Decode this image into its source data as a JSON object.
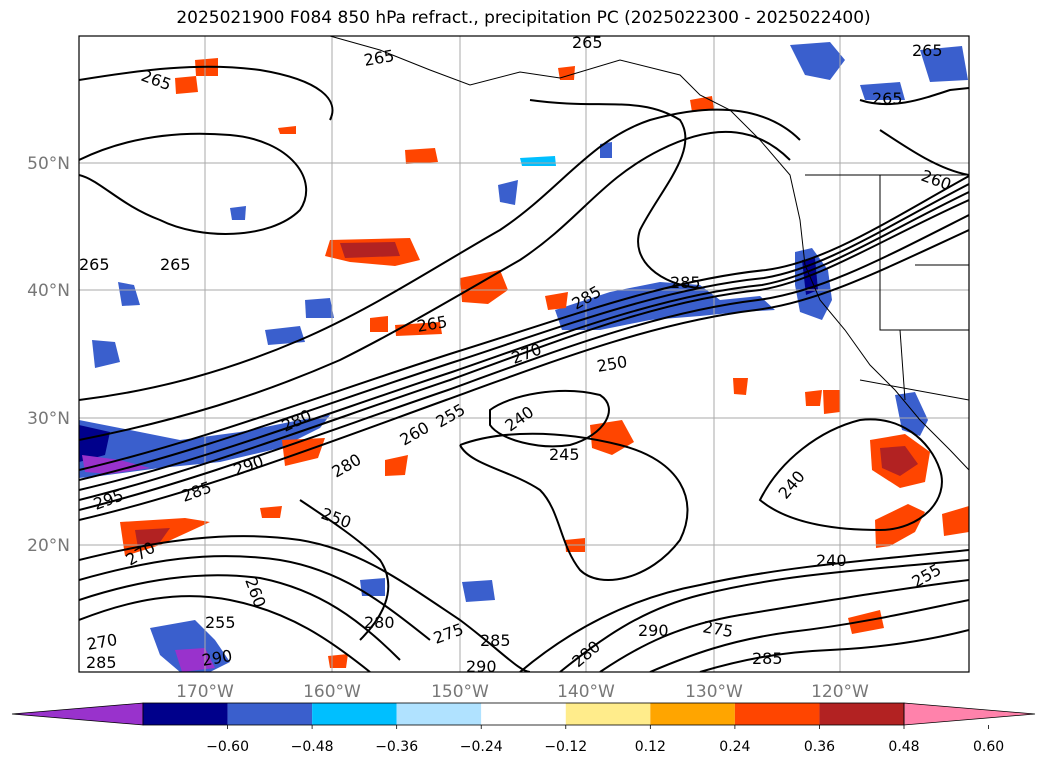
{
  "title": "2025021900 F084 850 hPa refract., precipitation PC (2025022300 - 2025022400)",
  "lat_labels": [
    "50°N",
    "40°N",
    "30°N",
    "20°N"
  ],
  "lon_labels": [
    "170°W",
    "160°W",
    "150°W",
    "140°W",
    "130°W",
    "120°W"
  ],
  "colorbar": {
    "colors": [
      "#9932cc",
      "#00008b",
      "#3a5fcd",
      "#00bfff",
      "#b0e2ff",
      "#ffffff",
      "#ffec8b",
      "#ffa500",
      "#ff4500",
      "#b22222",
      "#ff82ab"
    ],
    "tick_labels": [
      "−0.60",
      "−0.48",
      "−0.36",
      "−0.24",
      "−0.12",
      "0.12",
      "0.24",
      "0.36",
      "0.48",
      "0.60"
    ]
  },
  "contour_labels": [
    "265",
    "265",
    "265",
    "265",
    "265",
    "265",
    "265",
    "260",
    "265",
    "285",
    "285",
    "270",
    "250",
    "240",
    "245",
    "240",
    "240",
    "255",
    "280",
    "290",
    "285",
    "260",
    "255",
    "250",
    "270",
    "295",
    "280",
    "255",
    "280",
    "275",
    "285",
    "290",
    "275",
    "290",
    "285",
    "280",
    "270",
    "290",
    "285",
    "260"
  ]
}
